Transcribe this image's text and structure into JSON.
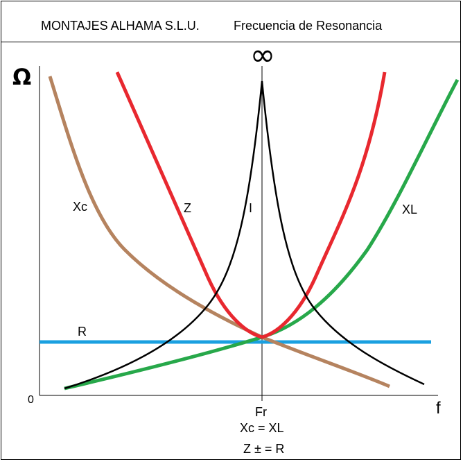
{
  "header": {
    "company": "MONTAJES ALHAMA S.L.U.",
    "title": "Frecuencia de Resonancia"
  },
  "axes": {
    "y_symbol": "Ω",
    "x_symbol": "f",
    "origin": "0",
    "infinity": "∞",
    "resonance_label": "Fr"
  },
  "curves": {
    "xc": {
      "label": "Xc",
      "color": "#b5835f"
    },
    "z": {
      "label": "Z",
      "color": "#e8282f"
    },
    "i": {
      "label": "I",
      "color": "#000000"
    },
    "xl": {
      "label": "XL",
      "color": "#27a84a"
    },
    "r": {
      "label": "R",
      "color": "#1aa0e0"
    }
  },
  "equations": {
    "line1": "Xc = XL",
    "line2": "Z ± = R"
  }
}
